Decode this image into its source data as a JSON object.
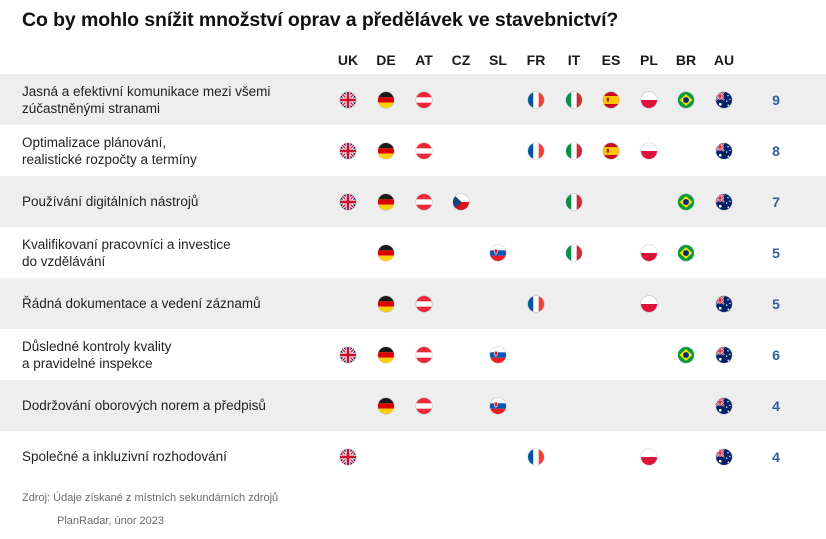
{
  "title": "Co by mohlo snížit množství oprav a předělávek ve stavebnictví?",
  "countries": [
    "UK",
    "DE",
    "AT",
    "CZ",
    "SL",
    "FR",
    "IT",
    "ES",
    "PL",
    "BR",
    "AU"
  ],
  "rows": [
    {
      "label": "Jasná a efektivní komunikace mezi všemi\nzúčastněnými stranami",
      "flags": [
        "UK",
        "DE",
        "AT",
        "FR",
        "IT",
        "ES",
        "PL",
        "BR",
        "AU"
      ],
      "count": "9"
    },
    {
      "label": "Optimalizace plánování,\nrealistické rozpočty a termíny",
      "flags": [
        "UK",
        "DE",
        "AT",
        "FR",
        "IT",
        "ES",
        "PL",
        "AU"
      ],
      "count": "8"
    },
    {
      "label": "Používání digitálních nástrojů",
      "flags": [
        "UK",
        "DE",
        "AT",
        "CZ",
        "IT",
        "BR",
        "AU"
      ],
      "count": "7"
    },
    {
      "label": "Kvalifikovaní pracovníci a investice\ndo vzdělávání",
      "flags": [
        "DE",
        "SL",
        "IT",
        "PL",
        "BR"
      ],
      "count": "5"
    },
    {
      "label": "Řádná dokumentace a vedení záznamů",
      "flags": [
        "DE",
        "AT",
        "FR",
        "PL",
        "AU"
      ],
      "count": "5"
    },
    {
      "label": "Důsledné kontroly kvality\na pravidelné inspekce",
      "flags": [
        "UK",
        "DE",
        "AT",
        "SL",
        "BR",
        "AU"
      ],
      "count": "6"
    },
    {
      "label": "Dodržování oborových norem a předpisů",
      "flags": [
        "DE",
        "AT",
        "SL",
        "AU"
      ],
      "count": "4"
    },
    {
      "label": "Společné a inkluzivní rozhodování",
      "flags": [
        "UK",
        "FR",
        "PL",
        "AU"
      ],
      "count": "4"
    }
  ],
  "source": "Zdroj: Údaje získané z místních sekundárních zdrojů",
  "credit": "PlanRadar, únor 2023",
  "colors": {
    "count_text": "#2f5f9e",
    "row_shade": "#eeeeef"
  }
}
